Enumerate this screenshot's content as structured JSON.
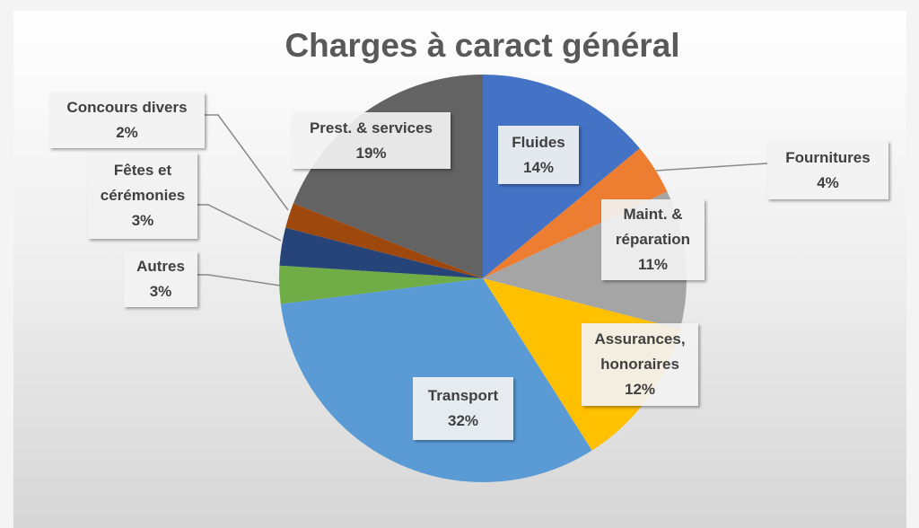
{
  "chart_data": {
    "type": "pie",
    "title": "Charges à caract général",
    "categories": [
      "Fluides",
      "Fournitures",
      "Maint. & réparation",
      "Assurances, honoraires",
      "Transport",
      "Autres",
      "Fêtes et cérémonies",
      "Concours divers",
      "Prest. & services"
    ],
    "values": [
      14,
      4,
      11,
      12,
      32,
      3,
      3,
      2,
      19
    ],
    "value_labels": [
      "14%",
      "4%",
      "11%",
      "12%",
      "32%",
      "3%",
      "3%",
      "2%",
      "19%"
    ],
    "colors": [
      "#4472c4",
      "#ed7d31",
      "#a5a5a5",
      "#ffc000",
      "#5b9bd5",
      "#70ad47",
      "#264478",
      "#9e480e",
      "#636363"
    ]
  }
}
